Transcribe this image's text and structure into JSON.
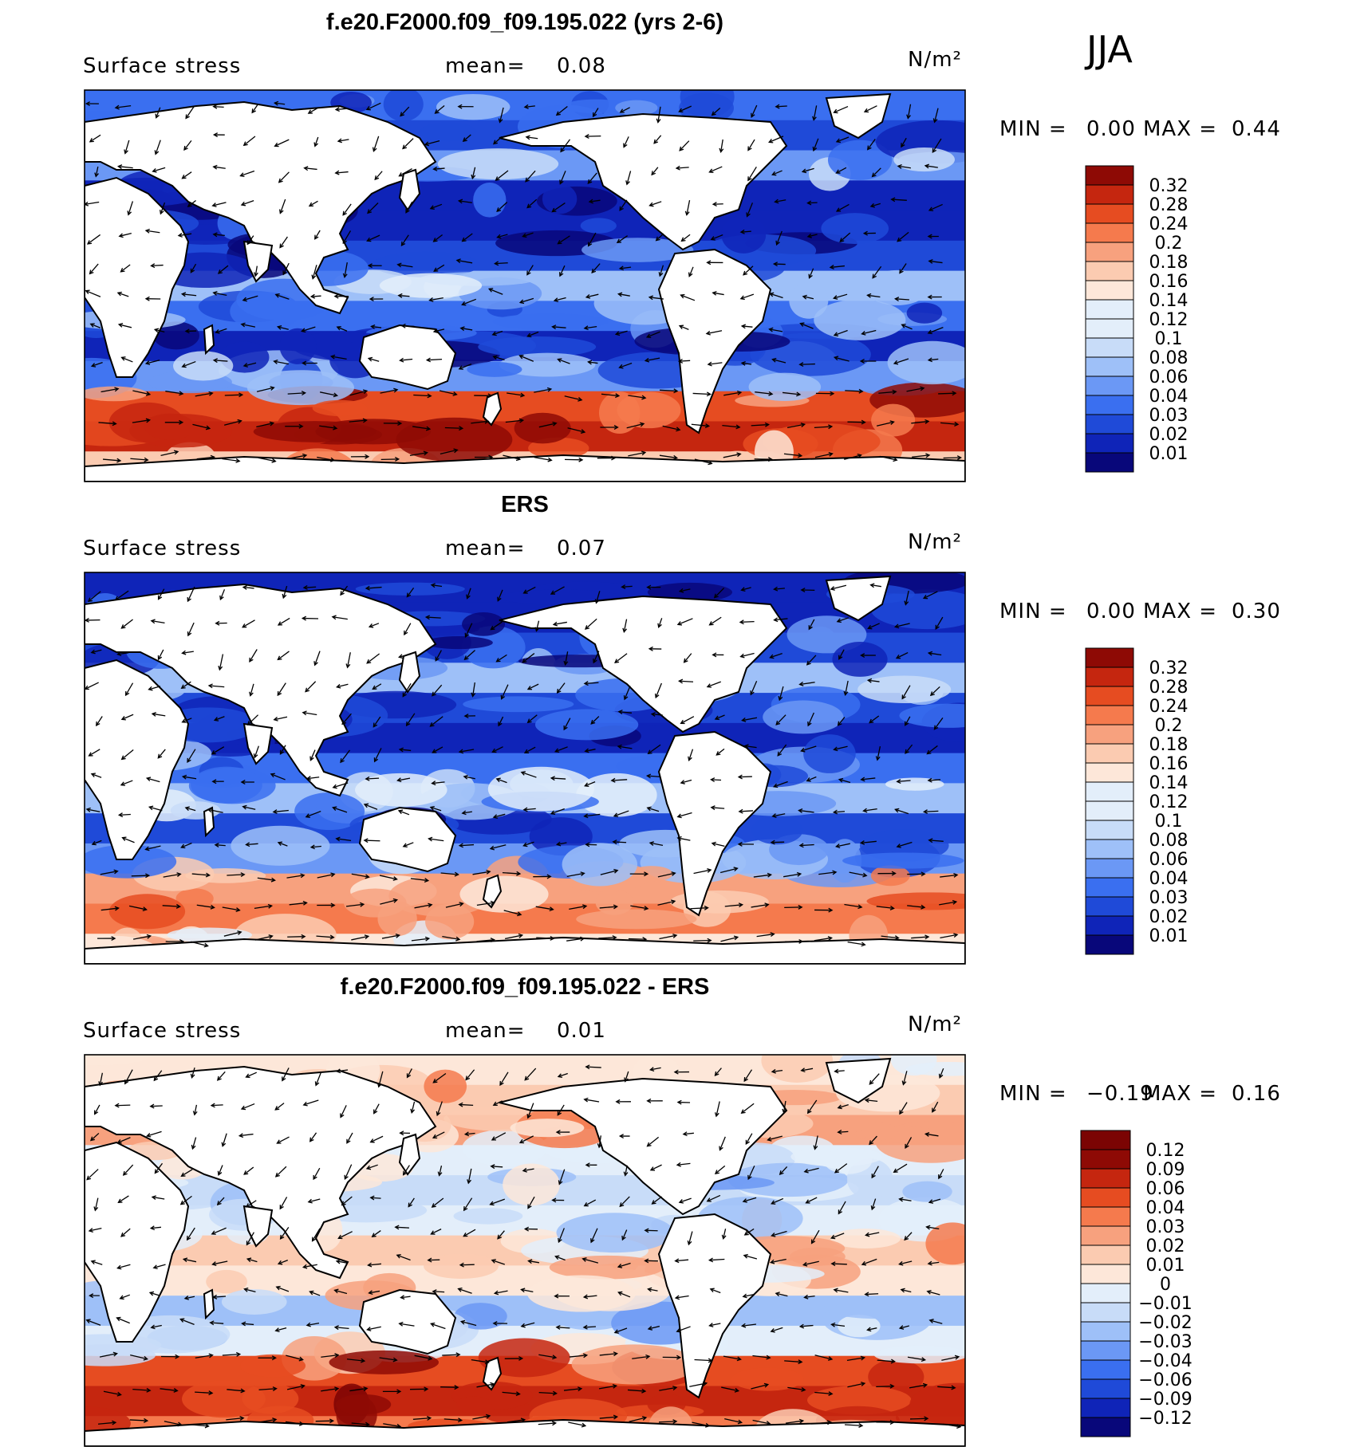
{
  "season": "JJA",
  "colors": {
    "seq": [
      "#08077a",
      "#0f24b8",
      "#1f4ad8",
      "#3a6ff0",
      "#6b98f5",
      "#9ec0f8",
      "#c8dcf8",
      "#e3eefa",
      "#fde7d9",
      "#fbcbb1",
      "#f7a17e",
      "#f57a4d",
      "#e64c21",
      "#c5260f",
      "#8e0a05"
    ],
    "div": [
      "#08077a",
      "#0f24b8",
      "#1f4ad8",
      "#3a6ff0",
      "#6b98f5",
      "#9ec0f8",
      "#c8dcf8",
      "#e3eefa",
      "#fde7d9",
      "#fbcbb1",
      "#f7a17e",
      "#f57a4d",
      "#e64c21",
      "#c5260f",
      "#8e0a05",
      "#7b0403"
    ]
  },
  "chart_data": [
    {
      "type": "heatmap",
      "title": "f.e20.F2000.f09_f09.195.022 (yrs 2-6)",
      "variable": "Surface stress",
      "mean_label": "mean=",
      "mean": "0.08",
      "units": "N/m²",
      "min_label": "MIN =",
      "min": "0.00",
      "max_label": "MAX =",
      "max": "0.44",
      "colorbar_ticks": [
        "0.32",
        "0.28",
        "0.24",
        "0.2",
        "0.18",
        "0.16",
        "0.14",
        "0.12",
        "0.1",
        "0.08",
        "0.06",
        "0.04",
        "0.03",
        "0.02",
        "0.01"
      ],
      "palette": "seq"
    },
    {
      "type": "heatmap",
      "title": "ERS",
      "variable": "Surface stress",
      "mean_label": "mean=",
      "mean": "0.07",
      "units": "N/m²",
      "min_label": "MIN =",
      "min": "0.00",
      "max_label": "MAX =",
      "max": "0.30",
      "colorbar_ticks": [
        "0.32",
        "0.28",
        "0.24",
        "0.2",
        "0.18",
        "0.16",
        "0.14",
        "0.12",
        "0.1",
        "0.08",
        "0.06",
        "0.04",
        "0.03",
        "0.02",
        "0.01"
      ],
      "palette": "seq"
    },
    {
      "type": "heatmap",
      "title": "f.e20.F2000.f09_f09.195.022 - ERS",
      "variable": "Surface stress",
      "mean_label": "mean=",
      "mean": "0.01",
      "units": "N/m²",
      "min_label": "MIN =",
      "min": "−0.19",
      "max_label": "MAX =",
      "max": "0.16",
      "colorbar_ticks": [
        "0.12",
        "0.09",
        "0.06",
        "0.04",
        "0.03",
        "0.02",
        "0.01",
        "0",
        "−0.01",
        "−0.02",
        "−0.03",
        "−0.04",
        "−0.06",
        "−0.09",
        "−0.12"
      ],
      "palette": "div"
    }
  ]
}
